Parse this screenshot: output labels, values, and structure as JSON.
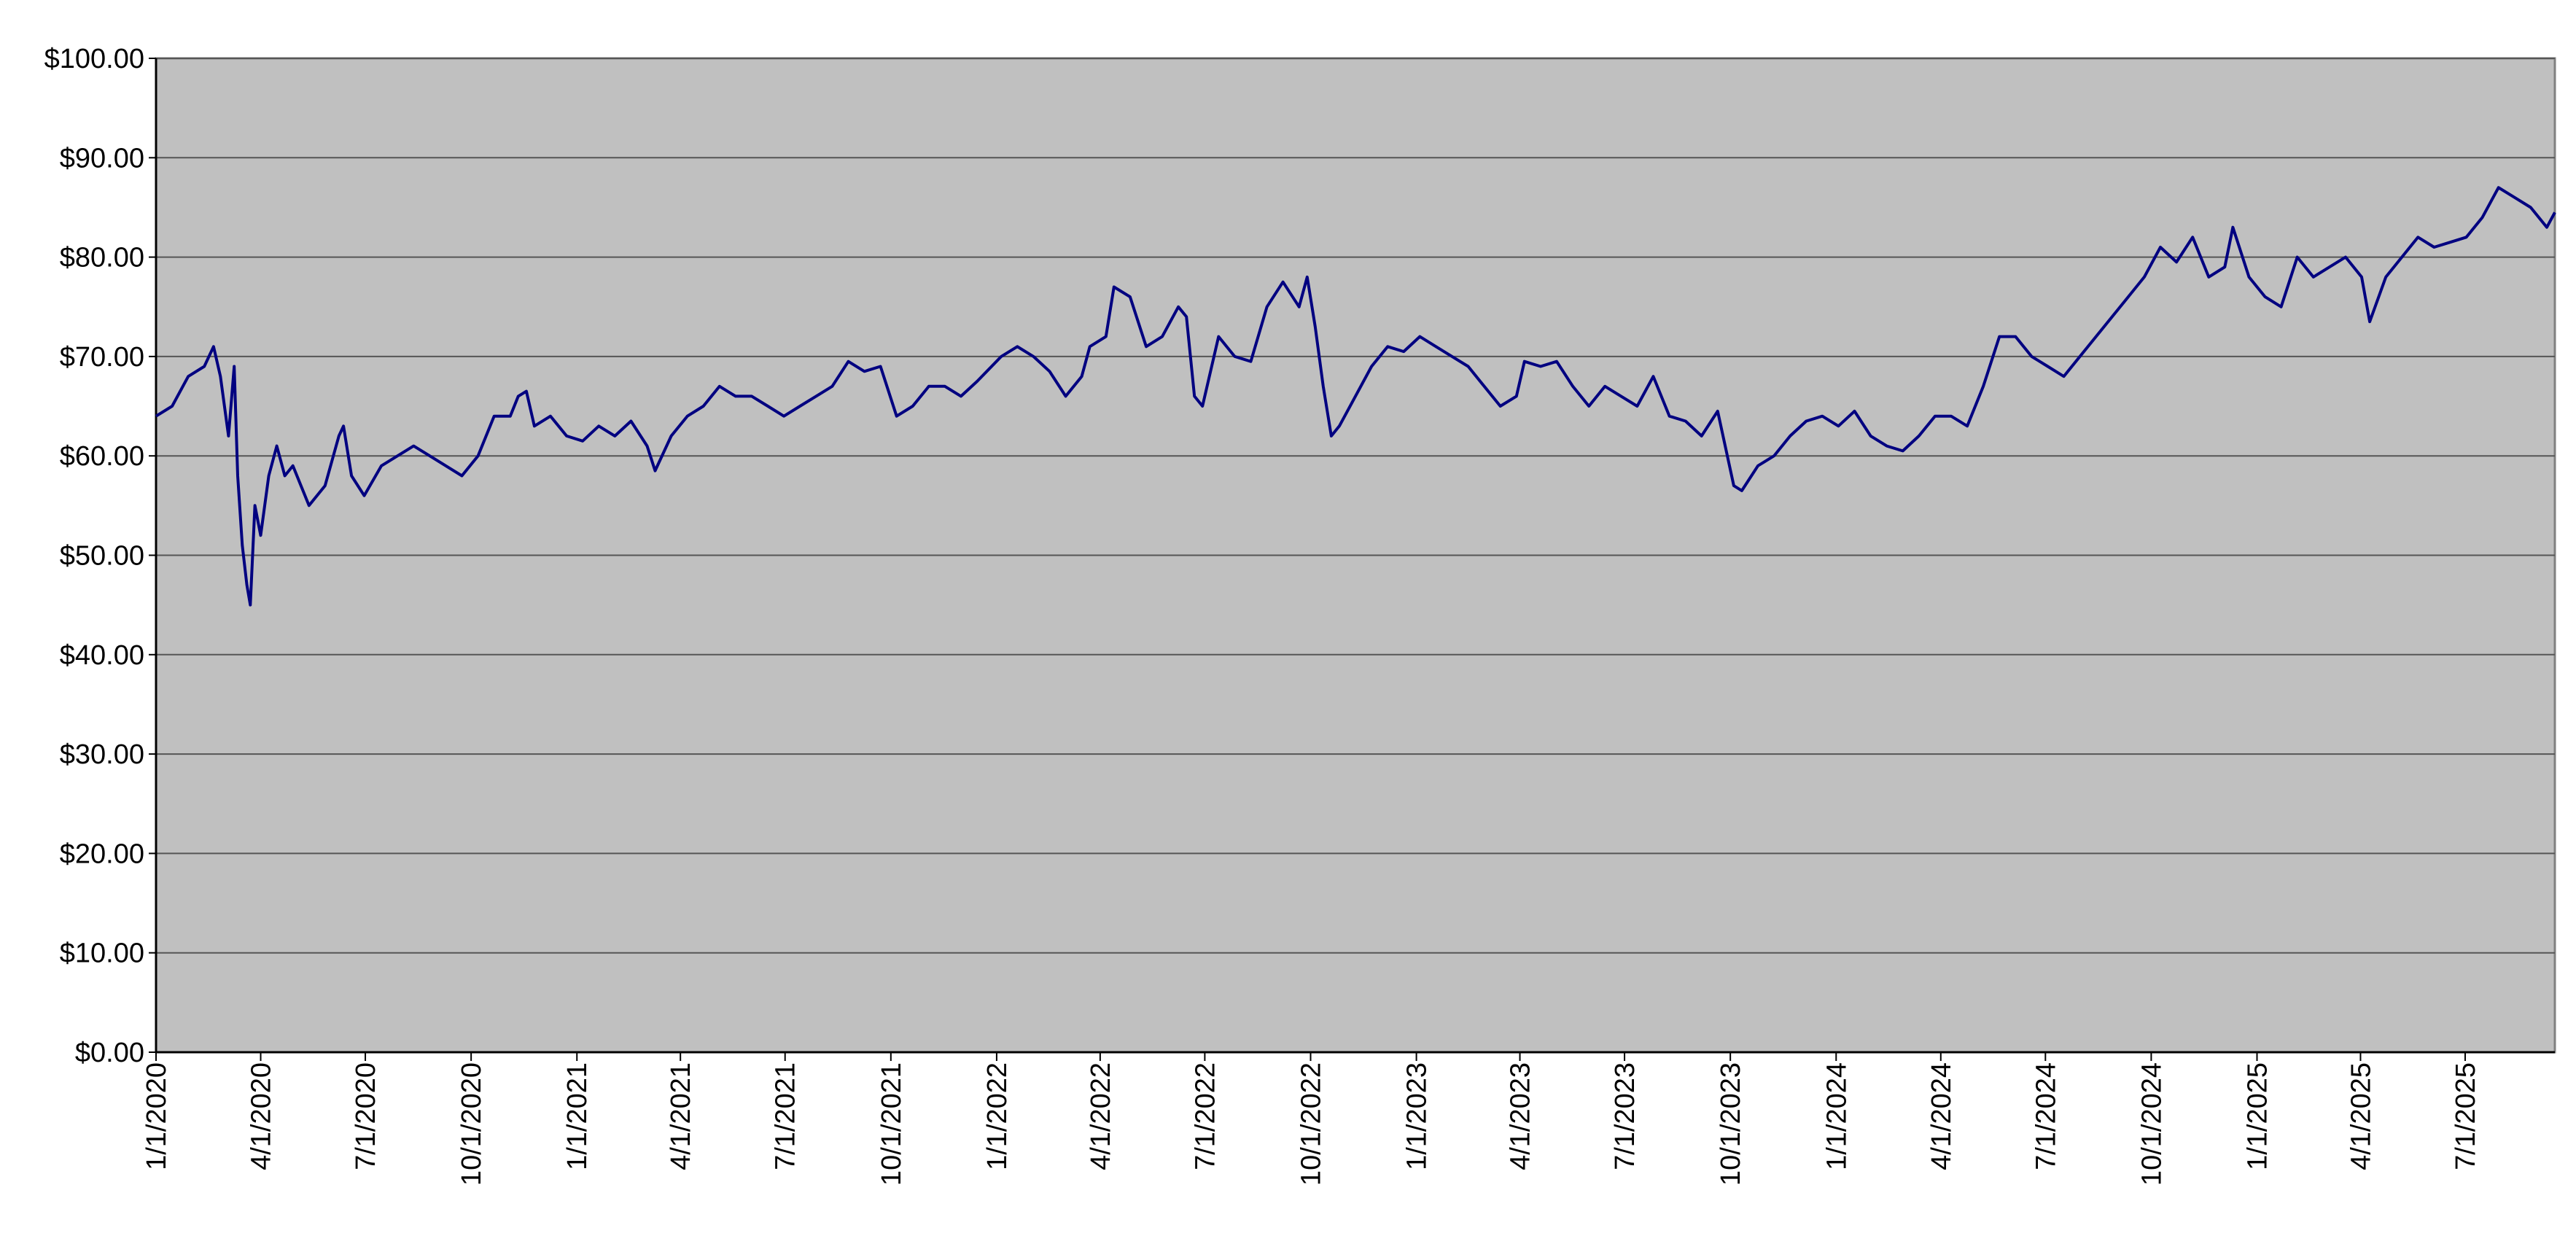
{
  "chart_data": {
    "type": "line",
    "color": "#000080",
    "plot_background": "#c0c0c0",
    "grid": true,
    "x": [
      "2020-01-01",
      "2020-01-15",
      "2020-01-29",
      "2020-02-12",
      "2020-02-20",
      "2020-02-26",
      "2020-03-04",
      "2020-03-09",
      "2020-03-12",
      "2020-03-16",
      "2020-03-20",
      "2020-03-23",
      "2020-03-27",
      "2020-04-01",
      "2020-04-08",
      "2020-04-15",
      "2020-04-22",
      "2020-04-29",
      "2020-05-13",
      "2020-05-27",
      "2020-06-08",
      "2020-06-12",
      "2020-06-19",
      "2020-06-30",
      "2020-07-15",
      "2020-07-29",
      "2020-08-12",
      "2020-08-26",
      "2020-09-09",
      "2020-09-23",
      "2020-10-07",
      "2020-10-21",
      "2020-11-04",
      "2020-11-11",
      "2020-11-18",
      "2020-11-25",
      "2020-12-09",
      "2020-12-23",
      "2021-01-06",
      "2021-01-20",
      "2021-02-03",
      "2021-02-17",
      "2021-03-03",
      "2021-03-10",
      "2021-03-24",
      "2021-04-07",
      "2021-04-21",
      "2021-05-05",
      "2021-05-19",
      "2021-06-02",
      "2021-06-16",
      "2021-06-30",
      "2021-07-14",
      "2021-07-28",
      "2021-08-11",
      "2021-08-25",
      "2021-09-08",
      "2021-09-22",
      "2021-10-06",
      "2021-10-20",
      "2021-11-03",
      "2021-11-17",
      "2021-12-01",
      "2021-12-15",
      "2022-01-05",
      "2022-01-19",
      "2022-02-02",
      "2022-02-16",
      "2022-03-02",
      "2022-03-16",
      "2022-03-23",
      "2022-04-06",
      "2022-04-13",
      "2022-04-27",
      "2022-05-11",
      "2022-05-25",
      "2022-06-08",
      "2022-06-15",
      "2022-06-22",
      "2022-06-29",
      "2022-07-13",
      "2022-07-27",
      "2022-08-10",
      "2022-08-24",
      "2022-09-07",
      "2022-09-21",
      "2022-09-28",
      "2022-10-05",
      "2022-10-12",
      "2022-10-19",
      "2022-10-26",
      "2022-11-09",
      "2022-11-23",
      "2022-12-07",
      "2022-12-21",
      "2023-01-04",
      "2023-01-18",
      "2023-02-01",
      "2023-02-15",
      "2023-03-01",
      "2023-03-15",
      "2023-03-29",
      "2023-04-05",
      "2023-04-19",
      "2023-05-03",
      "2023-05-17",
      "2023-05-31",
      "2023-06-14",
      "2023-06-28",
      "2023-07-12",
      "2023-07-26",
      "2023-08-09",
      "2023-08-23",
      "2023-09-06",
      "2023-09-20",
      "2023-10-04",
      "2023-10-11",
      "2023-10-25",
      "2023-11-08",
      "2023-11-22",
      "2023-12-06",
      "2023-12-20",
      "2024-01-03",
      "2024-01-17",
      "2024-01-31",
      "2024-02-14",
      "2024-02-28",
      "2024-03-13",
      "2024-03-27",
      "2024-04-10",
      "2024-04-24",
      "2024-05-08",
      "2024-05-22",
      "2024-06-05",
      "2024-06-19",
      "2024-07-03",
      "2024-07-17",
      "2024-07-31",
      "2024-08-14",
      "2024-08-28",
      "2024-09-11",
      "2024-09-25",
      "2024-10-09",
      "2024-10-23",
      "2024-11-06",
      "2024-11-20",
      "2024-12-04",
      "2024-12-11",
      "2024-12-25",
      "2025-01-08",
      "2025-01-22",
      "2025-02-05",
      "2025-02-19",
      "2025-03-05",
      "2025-03-19",
      "2025-04-02",
      "2025-04-09",
      "2025-04-23",
      "2025-05-07",
      "2025-05-21",
      "2025-06-04",
      "2025-06-18",
      "2025-07-02",
      "2025-07-16",
      "2025-07-30",
      "2025-08-13",
      "2025-08-27",
      "2025-09-10",
      "2025-09-17"
    ],
    "values": [
      64,
      65,
      68,
      69,
      71,
      68,
      62,
      69,
      58,
      51,
      47,
      45,
      55,
      52,
      58,
      61,
      58,
      59,
      55,
      57,
      62,
      63,
      58,
      56,
      59,
      60,
      61,
      60,
      59,
      58,
      60,
      64,
      64,
      66,
      66.5,
      63,
      64,
      62,
      61.5,
      63,
      62,
      63.5,
      61,
      58.5,
      62,
      64,
      65,
      67,
      66,
      66,
      65,
      64,
      65,
      66,
      67,
      69.5,
      68.5,
      69,
      64,
      65,
      67,
      67,
      66,
      67.5,
      70,
      71,
      70,
      68.5,
      66,
      68,
      71,
      72,
      77,
      76,
      71,
      72,
      75,
      74,
      66,
      65,
      72,
      70,
      69.5,
      75,
      77.5,
      75,
      78,
      73,
      67,
      62,
      63,
      66,
      69,
      71,
      70.5,
      72,
      71,
      70,
      69,
      67,
      65,
      66,
      69.5,
      69,
      69.5,
      67,
      65,
      67,
      66,
      65,
      68,
      64,
      63.5,
      62,
      64.5,
      57,
      56.5,
      59,
      60,
      62,
      63.5,
      64,
      63,
      64.5,
      62,
      61,
      60.5,
      62,
      64,
      64,
      63,
      67,
      72,
      72,
      70,
      69,
      68,
      70,
      72,
      74,
      76,
      78,
      81,
      79.5,
      82,
      78,
      79,
      83,
      78,
      76,
      75,
      80,
      78,
      79,
      80,
      78,
      73.5,
      78,
      80,
      82,
      81,
      81.5,
      82,
      84,
      87,
      86,
      85,
      83,
      84.5
    ],
    "xlim": [
      "2020-01-01",
      "2025-09-17"
    ],
    "xticks": [
      {
        "value": "2020-01-01",
        "label": "1/1/2020"
      },
      {
        "value": "2020-04-01",
        "label": "4/1/2020"
      },
      {
        "value": "2020-07-01",
        "label": "7/1/2020"
      },
      {
        "value": "2020-10-01",
        "label": "10/1/2020"
      },
      {
        "value": "2021-01-01",
        "label": "1/1/2021"
      },
      {
        "value": "2021-04-01",
        "label": "4/1/2021"
      },
      {
        "value": "2021-07-01",
        "label": "7/1/2021"
      },
      {
        "value": "2021-10-01",
        "label": "10/1/2021"
      },
      {
        "value": "2022-01-01",
        "label": "1/1/2022"
      },
      {
        "value": "2022-04-01",
        "label": "4/1/2022"
      },
      {
        "value": "2022-07-01",
        "label": "7/1/2022"
      },
      {
        "value": "2022-10-01",
        "label": "10/1/2022"
      },
      {
        "value": "2023-01-01",
        "label": "1/1/2023"
      },
      {
        "value": "2023-04-01",
        "label": "4/1/2023"
      },
      {
        "value": "2023-07-01",
        "label": "7/1/2023"
      },
      {
        "value": "2023-10-01",
        "label": "10/1/2023"
      },
      {
        "value": "2024-01-01",
        "label": "1/1/2024"
      },
      {
        "value": "2024-04-01",
        "label": "4/1/2024"
      },
      {
        "value": "2024-07-01",
        "label": "7/1/2024"
      },
      {
        "value": "2024-10-01",
        "label": "10/1/2024"
      },
      {
        "value": "2025-01-01",
        "label": "1/1/2025"
      },
      {
        "value": "2025-04-01",
        "label": "4/1/2025"
      },
      {
        "value": "2025-07-01",
        "label": "7/1/2025"
      }
    ],
    "ylim": [
      0,
      100
    ],
    "yticks": [
      {
        "value": 0,
        "label": "$0.00"
      },
      {
        "value": 10,
        "label": "$10.00"
      },
      {
        "value": 20,
        "label": "$20.00"
      },
      {
        "value": 30,
        "label": "$30.00"
      },
      {
        "value": 40,
        "label": "$40.00"
      },
      {
        "value": 50,
        "label": "$50.00"
      },
      {
        "value": 60,
        "label": "$60.00"
      },
      {
        "value": 70,
        "label": "$70.00"
      },
      {
        "value": 80,
        "label": "$80.00"
      },
      {
        "value": 90,
        "label": "$90.00"
      },
      {
        "value": 100,
        "label": "$100.00"
      }
    ]
  }
}
